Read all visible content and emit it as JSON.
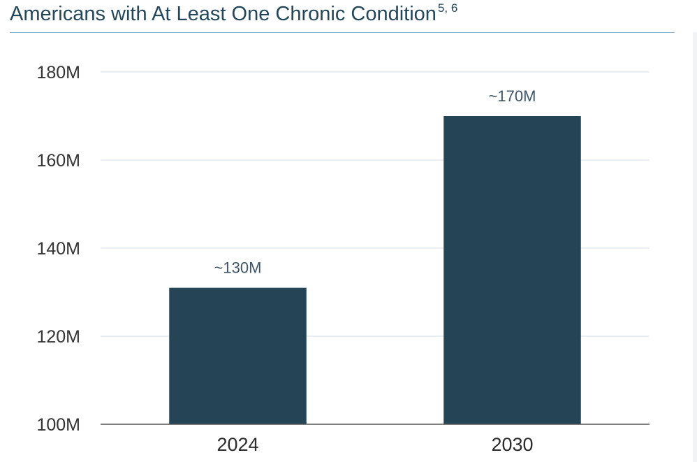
{
  "title": "Americans with At Least One Chronic Condition",
  "title_superscript": "5, 6",
  "colors": {
    "bar": "#254556",
    "title": "#22465a",
    "grid": "#dde7ea",
    "axis": "#555555",
    "rule": "#8fb3c9"
  },
  "chart_data": {
    "type": "bar",
    "title": "Americans with At Least One Chronic Condition",
    "categories": [
      "2024",
      "2030"
    ],
    "values": [
      131,
      170
    ],
    "data_labels": [
      "~130M",
      "~170M"
    ],
    "ylim": [
      100,
      180
    ],
    "yticks": [
      100,
      120,
      140,
      160,
      180
    ],
    "ytick_labels": [
      "100M",
      "120M",
      "140M",
      "160M",
      "180M"
    ],
    "xlabel": "",
    "ylabel": "",
    "grid": true,
    "legend": "none"
  }
}
